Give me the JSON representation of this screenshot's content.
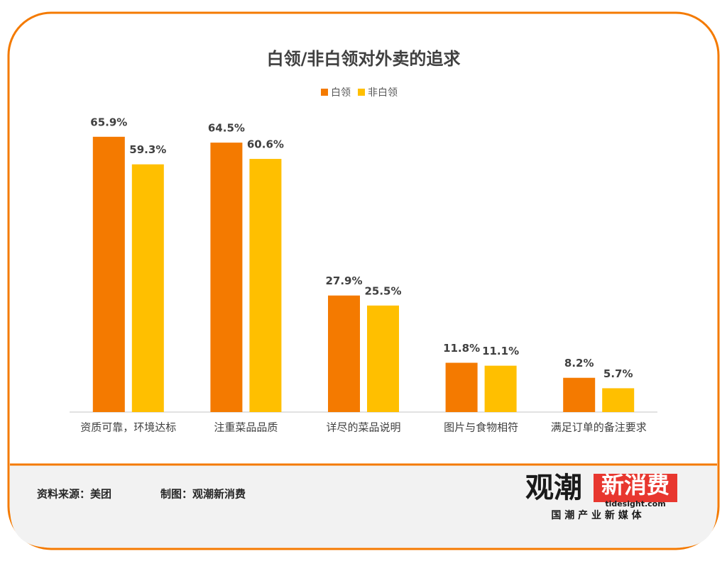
{
  "chart_data": {
    "type": "bar",
    "title": "白领/非白领对外卖的追求",
    "categories": [
      "资质可靠，环境达标",
      "注重菜品品质",
      "详尽的菜品说明",
      "图片与食物相符",
      "满足订单的备注要求"
    ],
    "series": [
      {
        "name": "白领",
        "color": "#f47a00",
        "values": [
          65.9,
          64.5,
          27.9,
          11.8,
          8.2
        ],
        "value_labels": [
          "65.9%",
          "64.5%",
          "27.9%",
          "11.8%",
          "8.2%"
        ]
      },
      {
        "name": "非白领",
        "color": "#ffbf00",
        "values": [
          59.3,
          60.6,
          25.5,
          11.1,
          5.7
        ],
        "value_labels": [
          "59.3%",
          "60.6%",
          "25.5%",
          "11.1%",
          "5.7%"
        ]
      }
    ],
    "legend": "top"
  },
  "footer": {
    "source": "资料来源：美团",
    "maker": "制图：观潮新消费"
  },
  "logo": {
    "name_a": "观潮",
    "name_b": "新消费",
    "site": "tidesight.com",
    "tagline": "国 潮 产 业 新 媒 体"
  }
}
